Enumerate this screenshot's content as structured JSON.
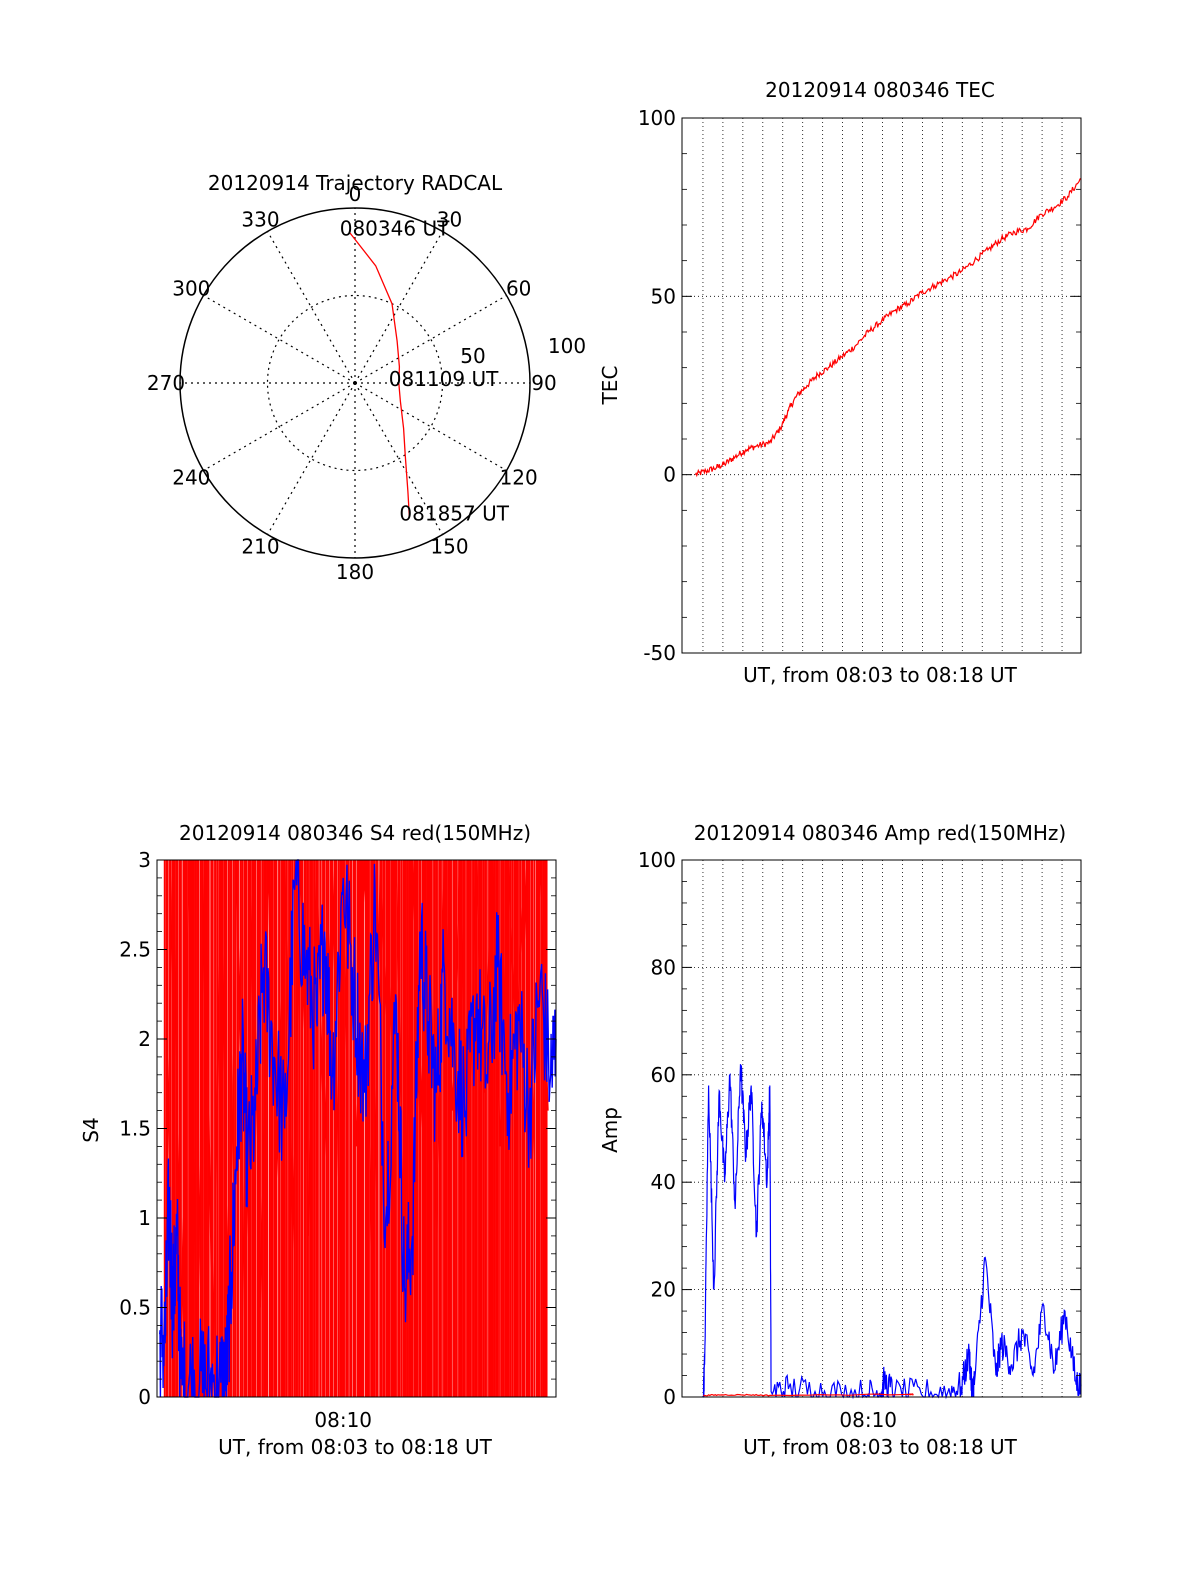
{
  "chart_data": [
    {
      "type": "polar-trajectory",
      "title": "20120914 Trajectory RADCAL",
      "angle_labels": [
        "0",
        "30",
        "60",
        "90",
        "120",
        "150",
        "180",
        "210",
        "240",
        "270",
        "300",
        "330"
      ],
      "radius_labels": [
        "50",
        "100"
      ],
      "radial_grid": [
        50,
        100
      ],
      "trajectory_color": "#ff0000",
      "trajectory": [
        {
          "az": 358,
          "r": 86
        },
        {
          "az": 10,
          "r": 68
        },
        {
          "az": 25,
          "r": 50
        },
        {
          "az": 45,
          "r": 34
        },
        {
          "az": 70,
          "r": 27
        },
        {
          "az": 90,
          "r": 25
        },
        {
          "az": 112,
          "r": 28
        },
        {
          "az": 133,
          "r": 38
        },
        {
          "az": 145,
          "r": 50
        },
        {
          "az": 154,
          "r": 69
        },
        {
          "az": 158,
          "r": 83
        }
      ],
      "annotations": [
        {
          "text": "080346 UT",
          "az": 358,
          "r": 86
        },
        {
          "text": "081109 UT",
          "az": 90,
          "r": 25
        },
        {
          "text": "081857 UT",
          "az": 158,
          "r": 83
        }
      ]
    },
    {
      "type": "line",
      "title": "20120914 080346 TEC",
      "xlabel": "UT, from 08:03 to 08:18 UT",
      "ylabel": "TEC",
      "xlim": [
        0,
        15
      ],
      "ylim": [
        -50,
        100
      ],
      "yticks": [
        "-50",
        "0",
        "50",
        "100"
      ],
      "grid": true,
      "series": [
        {
          "color": "#ff0000",
          "x": [
            0.5,
            0.9,
            1.3,
            1.6,
            2.0,
            2.4,
            2.8,
            3.3,
            3.7,
            4.0,
            4.3,
            4.7,
            5.1,
            5.5,
            6.0,
            6.5,
            7.0,
            7.5,
            8.0,
            8.5,
            9.0,
            9.5,
            10.0,
            10.5,
            11.0,
            11.5,
            12.0,
            12.5,
            13.0,
            13.5,
            14.0,
            14.5,
            15.0
          ],
          "y": [
            0,
            1,
            2,
            3,
            5,
            7,
            8,
            9,
            13,
            18,
            22,
            25,
            28,
            30,
            33,
            36,
            40,
            43,
            46,
            48,
            51,
            53,
            55,
            57,
            60,
            63,
            66,
            68,
            69,
            73,
            75,
            78,
            83
          ]
        }
      ]
    },
    {
      "type": "line",
      "title": "20120914 080346 S4 red(150MHz)",
      "xlabel": "UT, from 08:03 to 08:18 UT",
      "ylabel": "S4",
      "xlim": [
        0,
        15
      ],
      "ylim": [
        0,
        3
      ],
      "yticks": [
        "0",
        "0.5",
        "1",
        "1.5",
        "2",
        "2.5",
        "3"
      ],
      "xticks": [
        {
          "value": 7,
          "label": "08:10"
        }
      ],
      "grid": false,
      "series": [
        {
          "color": "#ff0000",
          "x": [
            0.25,
            0.6,
            0.9,
            1.2,
            1.5,
            1.8,
            2.1,
            2.4,
            2.7,
            3.0,
            3.3,
            3.6,
            3.9,
            4.2,
            4.5,
            4.8,
            5.1,
            5.4,
            5.7,
            6.0,
            6.3,
            6.6,
            6.9,
            7.2,
            7.5,
            7.8,
            8.1,
            8.4,
            8.7,
            9.0,
            9.3,
            9.6,
            9.9,
            10.2,
            10.5,
            10.8,
            11.1,
            11.4,
            11.7,
            12.0,
            12.3,
            12.6,
            12.9,
            13.2,
            13.5,
            13.8,
            14.1,
            14.4,
            14.7
          ],
          "y": [
            0.3,
            3,
            0.2,
            3,
            0.1,
            3,
            0.1,
            3,
            0.2,
            3,
            0.4,
            3,
            0.5,
            3,
            1.2,
            3,
            0.8,
            3,
            0.9,
            3,
            1.3,
            3,
            0.7,
            3,
            1.4,
            3,
            0.6,
            3,
            1.8,
            3,
            0.6,
            3,
            1.5,
            3,
            0.9,
            3,
            1.6,
            3,
            1.2,
            3,
            1.7,
            3,
            1.4,
            3,
            1.9,
            3,
            1.3,
            3,
            1.6
          ]
        },
        {
          "color": "#0000ff",
          "x": [
            0.1,
            0.3,
            0.45,
            0.6,
            0.75,
            0.9,
            1.2,
            1.6,
            2.0,
            2.4,
            2.6,
            2.8,
            3.0,
            3.2,
            3.4,
            3.7,
            4.0,
            4.4,
            4.8,
            5.2,
            5.6,
            6.0,
            6.3,
            6.6,
            7.0,
            7.4,
            7.8,
            8.2,
            8.6,
            9.0,
            9.3,
            9.6,
            9.9,
            10.2,
            10.5,
            10.8,
            11.2,
            11.6,
            12.0,
            12.4,
            12.8,
            13.2,
            13.6,
            14.0,
            14.4,
            14.8,
            15.0
          ],
          "y": [
            0.35,
            0.3,
            1.1,
            0.5,
            0.9,
            0.1,
            0.08,
            0.08,
            0.09,
            0.08,
            0.1,
            0.7,
            1.4,
            1.9,
            1.3,
            1.6,
            2.4,
            1.9,
            1.5,
            2.9,
            2.4,
            2.1,
            2.6,
            1.8,
            2.9,
            2.3,
            1.7,
            2.8,
            1.0,
            2.2,
            0.6,
            0.9,
            2.6,
            2.1,
            1.7,
            2.4,
            1.9,
            1.6,
            2.2,
            1.8,
            2.4,
            1.7,
            2.1,
            1.6,
            2.3,
            1.8,
            2.0
          ]
        }
      ]
    },
    {
      "type": "line",
      "title": "20120914 080346 Amp red(150MHz)",
      "xlabel": "UT, from 08:03 to 08:18 UT",
      "ylabel": "Amp",
      "xlim": [
        0,
        15
      ],
      "ylim": [
        0,
        100
      ],
      "yticks": [
        "0",
        "20",
        "40",
        "60",
        "80",
        "100"
      ],
      "xticks": [
        {
          "value": 7,
          "label": "08:10"
        }
      ],
      "grid": true,
      "series": [
        {
          "color": "#0000ff",
          "x": [
            0.8,
            0.85,
            1.0,
            1.2,
            1.4,
            1.6,
            1.8,
            2.0,
            2.2,
            2.4,
            2.6,
            2.8,
            3.0,
            3.2,
            3.3,
            3.35,
            4.0,
            5.0,
            6.0,
            7.0,
            7.5,
            7.6,
            8.0,
            9.0,
            10.0,
            10.5,
            10.8,
            10.9,
            11.0,
            11.4,
            11.8,
            12.0,
            12.4,
            12.8,
            13.2,
            13.6,
            14.0,
            14.4,
            14.8,
            15.0
          ],
          "y": [
            0,
            6,
            58,
            20,
            57,
            40,
            60,
            35,
            62,
            45,
            58,
            30,
            55,
            40,
            58,
            1,
            1.5,
            1,
            0.5,
            0.5,
            1,
            3,
            0.5,
            0.5,
            1,
            2,
            8,
            1,
            3,
            26,
            4,
            10,
            6,
            12,
            4,
            17,
            5,
            16,
            3,
            2
          ]
        },
        {
          "color": "#ff0000",
          "x": [
            0.8,
            1.5,
            2.5,
            3.3,
            8.5,
            8.7
          ],
          "y": [
            0.3,
            0.4,
            0.4,
            0.3,
            0.5,
            0.5
          ]
        }
      ]
    }
  ]
}
